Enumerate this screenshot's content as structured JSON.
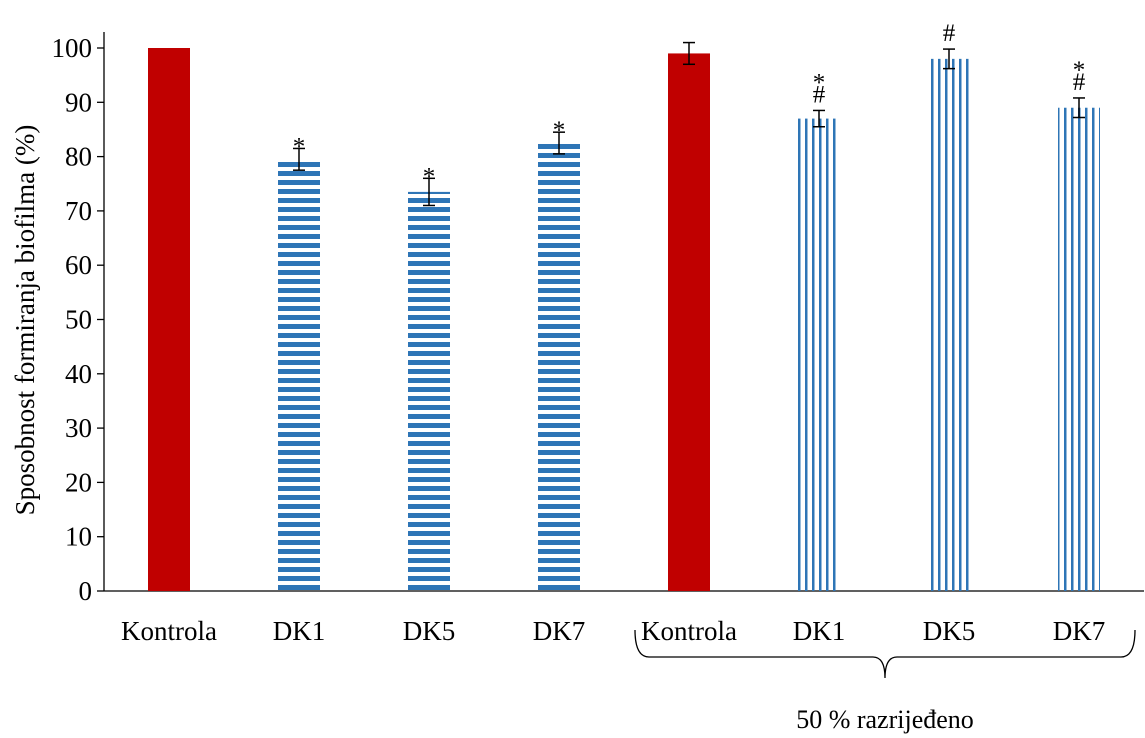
{
  "chart_data": {
    "type": "bar",
    "title": "",
    "xlabel": "",
    "ylabel": "Sposobnost formiranja biofilma (%)",
    "ylim": [
      0,
      100
    ],
    "yticks": [
      0,
      10,
      20,
      30,
      40,
      50,
      60,
      70,
      80,
      90,
      100
    ],
    "grid": false,
    "legend": "none",
    "categories": [
      "Kontrola",
      "DK1",
      "DK5",
      "DK7",
      "Kontrola",
      "DK1",
      "DK5",
      "DK7"
    ],
    "values": [
      100,
      79.5,
      73.5,
      82.5,
      99,
      87,
      98,
      89
    ],
    "errors": [
      0,
      2,
      2.5,
      2,
      2,
      1.5,
      1.8,
      1.8
    ],
    "fills": [
      "solid",
      "horizontal",
      "horizontal",
      "horizontal",
      "solid",
      "vertical",
      "vertical",
      "vertical"
    ],
    "annotations": [
      [],
      [
        "*"
      ],
      [
        "*"
      ],
      [
        "*"
      ],
      [],
      [
        "*",
        "#"
      ],
      [
        "#"
      ],
      [
        "*",
        "#"
      ]
    ],
    "group": {
      "label": "50 % razrijeđeno",
      "from_index": 4,
      "to_index": 7
    },
    "colors": {
      "control": "#C00000",
      "pattern": "#2E75B6",
      "axis": "#000000"
    }
  }
}
